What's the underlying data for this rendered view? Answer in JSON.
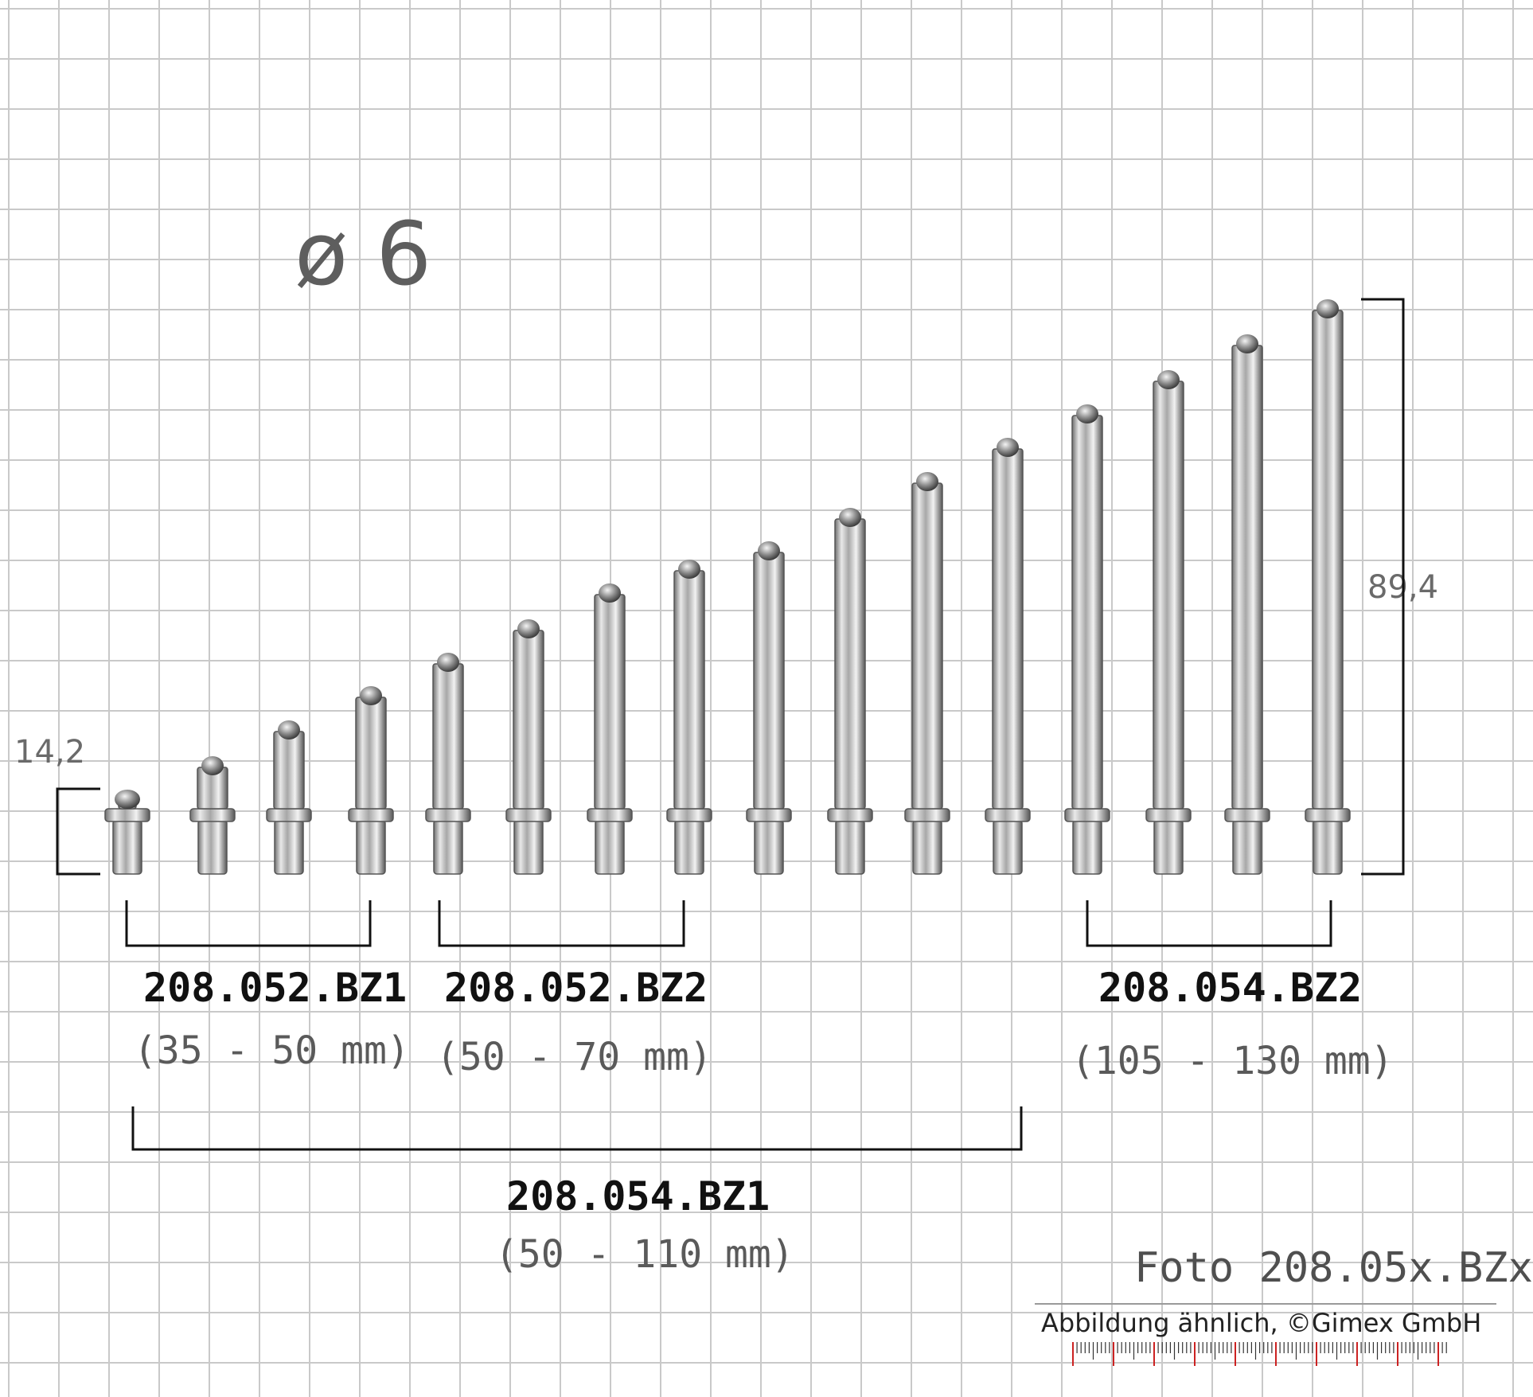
{
  "diameter_label": "ø 6",
  "dimensions": {
    "min_height": "14,2",
    "max_height": "89,4"
  },
  "sets": [
    {
      "code": "208.052.BZ1",
      "range": "(35 - 50 mm)"
    },
    {
      "code": "208.052.BZ2",
      "range": "(50 - 70 mm)"
    },
    {
      "code": "208.054.BZ2",
      "range": "(105 - 130 mm)"
    },
    {
      "code": "208.054.BZ1",
      "range": "(50 - 110 mm)"
    }
  ],
  "photo_caption": "Foto 208.05x.BZx",
  "copyright": "Abbildung ähnlich, ©Gimex GmbH",
  "colors": {
    "grid": "#c9c9c9",
    "text_dark": "#111111",
    "text_gray": "#5a5a5a",
    "ruler_red": "#cc2222"
  },
  "icons": [
    "contact-pin-icon",
    "ruler-scale-icon"
  ]
}
